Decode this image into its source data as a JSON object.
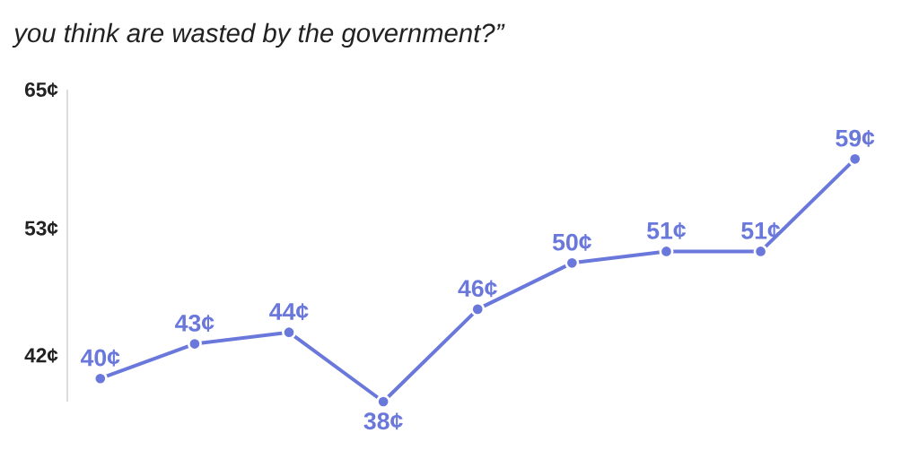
{
  "chart_data": {
    "type": "line",
    "title": "you think are wasted by the government?”",
    "categories": [
      null,
      null,
      null,
      null,
      null,
      null,
      null,
      null,
      null
    ],
    "series": [
      {
        "color": "#6a78dc",
        "values": [
          40,
          43,
          44,
          38,
          46,
          50,
          51,
          51,
          59
        ],
        "value_labels": [
          "40¢",
          "43¢",
          "44¢",
          "38¢",
          "46¢",
          "50¢",
          "51¢",
          "51¢",
          "59¢"
        ]
      }
    ],
    "ylim": [
      38,
      65
    ],
    "yticks": [
      {
        "value": 65,
        "label": "65¢"
      },
      {
        "value": 53,
        "label": "53¢"
      },
      {
        "value": 42,
        "label": "42¢"
      }
    ],
    "marker": "circle",
    "line_style": "solid",
    "tick_labels": "y"
  }
}
